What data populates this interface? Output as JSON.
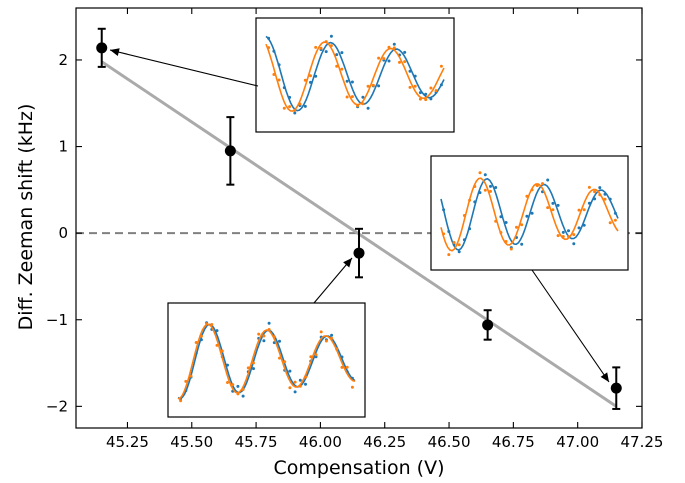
{
  "chart_data": {
    "type": "scatter",
    "xlabel": "Compensation (V)",
    "ylabel": "Diff. Zeeman shift (kHz)",
    "xlim": [
      45.05,
      47.25
    ],
    "ylim": [
      -2.25,
      2.6
    ],
    "x_ticks": [
      "45.25",
      "45.50",
      "45.75",
      "46.00",
      "46.25",
      "46.50",
      "46.75",
      "47.00",
      "47.25"
    ],
    "y_ticks": [
      "−2",
      "−1",
      "0",
      "1",
      "2"
    ],
    "grid": false,
    "points": [
      {
        "x": 45.15,
        "y": 2.14,
        "err": 0.22
      },
      {
        "x": 45.65,
        "y": 0.95,
        "err": 0.39
      },
      {
        "x": 46.15,
        "y": -0.23,
        "err": 0.28
      },
      {
        "x": 46.65,
        "y": -1.06,
        "err": 0.17
      },
      {
        "x": 47.15,
        "y": -1.79,
        "err": 0.24
      }
    ],
    "fit_line": {
      "x": [
        45.15,
        47.15
      ],
      "y": [
        1.98,
        -2.0
      ],
      "color": "#aaaaaa"
    },
    "zero_line": {
      "y": 0,
      "style": "dashed",
      "color": "#808080"
    },
    "marker_color": "#000000",
    "insets": [
      {
        "target_point": 0,
        "series_colors": [
          "#1f77b4",
          "#ff7f0e"
        ]
      },
      {
        "target_point": 2,
        "series_colors": [
          "#1f77b4",
          "#ff7f0e"
        ]
      },
      {
        "target_point": 4,
        "series_colors": [
          "#1f77b4",
          "#ff7f0e"
        ]
      }
    ]
  }
}
